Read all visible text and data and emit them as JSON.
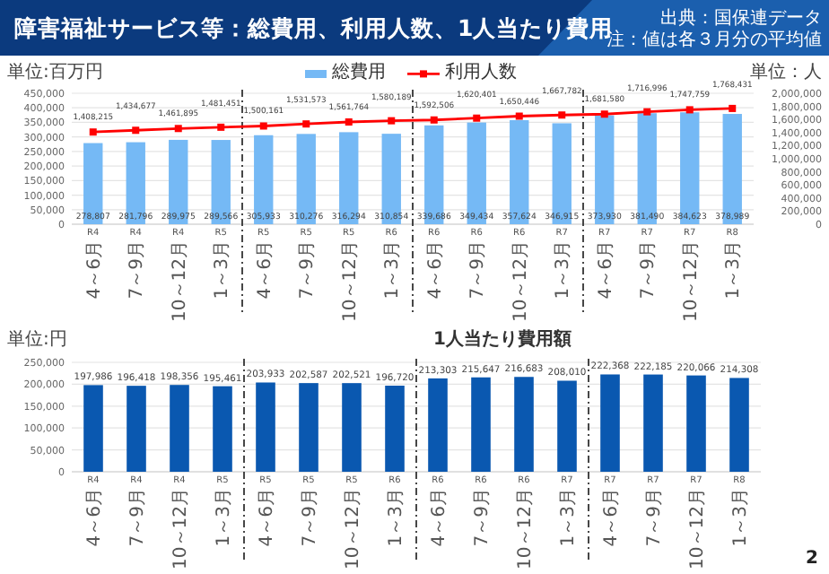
{
  "chart_data": [
    {
      "type": "bar",
      "title": "障害福祉サービス等：総費用、利用人数、1人当たり費用",
      "annotations": [
        "出典：国保連データ",
        "注：値は各３月分の平均値"
      ],
      "ylabel": "単位:百万円",
      "y2label": "単位：人",
      "categories": [
        "R4 4～6月",
        "R4 7～9月",
        "R4 10～12月",
        "R5 1～3月",
        "R5 4～6月",
        "R5 7～9月",
        "R5 10～12月",
        "R6 1～3月",
        "R6 4～6月",
        "R6 7～9月",
        "R6 10～12月",
        "R7 1～3月",
        "R7 4～6月",
        "R7 7～9月",
        "R7 10～12月",
        "R8 1～3月"
      ],
      "series": [
        {
          "name": "総費用",
          "color": "#75b9f5",
          "values": [
            278807,
            281796,
            289975,
            289566,
            305933,
            310276,
            316294,
            310854,
            339686,
            349434,
            357624,
            346915,
            373930,
            381490,
            384623,
            378989
          ],
          "value_labels": [
            "278,807",
            "281,796",
            "289,975",
            "289,566",
            "305,933",
            "310,276",
            "316,294",
            "310,854",
            "339,686",
            "349,434",
            "357,624",
            "346,915",
            "373,930",
            "381,490",
            "384,623",
            "378,989"
          ]
        },
        {
          "name": "利用人数",
          "type": "line",
          "axis": "y2",
          "color": "#ff0000",
          "values": [
            1408215,
            1434677,
            1461895,
            1481451,
            1500161,
            1531573,
            1561764,
            1580189,
            1592506,
            1620401,
            1650446,
            1667782,
            1681580,
            1716996,
            1747759,
            1768431
          ],
          "value_labels": [
            "1,408,215",
            "1,434,677",
            "1,461,895",
            "1,481,451",
            "1,500,161",
            "1,531,573",
            "1,561,764",
            "1,580,189",
            "1,592,506",
            "1,620,401",
            "1,650,446",
            "1,667,782",
            "1,681,580",
            "1,716,996",
            "1,747,759",
            "1,768,431"
          ]
        }
      ],
      "ylim": [
        0,
        450000
      ],
      "yticks": [
        {
          "value": 0,
          "label": "0"
        },
        {
          "value": 50000,
          "label": "50,000"
        },
        {
          "value": 100000,
          "label": "100,000"
        },
        {
          "value": 150000,
          "label": "150,000"
        },
        {
          "value": 200000,
          "label": "200,000"
        },
        {
          "value": 250000,
          "label": "250,000"
        },
        {
          "value": 300000,
          "label": "300,000"
        },
        {
          "value": 350000,
          "label": "350,000"
        },
        {
          "value": 400000,
          "label": "400,000"
        },
        {
          "value": 450000,
          "label": "450,000"
        }
      ],
      "y2lim": [
        0,
        2000000
      ],
      "y2ticks": [
        {
          "value": 0,
          "label": "0"
        },
        {
          "value": 200000,
          "label": "200,000"
        },
        {
          "value": 400000,
          "label": "400,000"
        },
        {
          "value": 600000,
          "label": "600,000"
        },
        {
          "value": 800000,
          "label": "800,000"
        },
        {
          "value": 1000000,
          "label": "1,000,000"
        },
        {
          "value": 1200000,
          "label": "1,200,000"
        },
        {
          "value": 1400000,
          "label": "1,400,000"
        },
        {
          "value": 1600000,
          "label": "1,600,000"
        },
        {
          "value": 1800000,
          "label": "1,800,000"
        },
        {
          "value": 2000000,
          "label": "2,000,000"
        }
      ],
      "grid": "y",
      "legend": "top",
      "marker": "square"
    },
    {
      "type": "bar",
      "title": "1人当たり費用額",
      "ylabel": "単位:円",
      "annotations": [
        "2"
      ],
      "categories": [
        "R4 4～6月",
        "R4 7～9月",
        "R4 10～12月",
        "R5 1～3月",
        "R5 4～6月",
        "R5 7～9月",
        "R5 10～12月",
        "R6 1～3月",
        "R6 4～6月",
        "R6 7～9月",
        "R6 10～12月",
        "R7 1～3月",
        "R7 4～6月",
        "R7 7～9月",
        "R7 10～12月",
        "R8 1～3月"
      ],
      "series": [
        {
          "color": "#0a58b0",
          "values": [
            197986,
            196418,
            198356,
            195461,
            203933,
            202587,
            202521,
            196720,
            213303,
            215647,
            216683,
            208010,
            222368,
            222185,
            220066,
            214308
          ],
          "value_labels": [
            "197,986",
            "196,418",
            "198,356",
            "195,461",
            "203,933",
            "202,587",
            "202,521",
            "196,720",
            "213,303",
            "215,647",
            "216,683",
            "208,010",
            "222,368",
            "222,185",
            "220,066",
            "214,308"
          ]
        }
      ],
      "ylim": [
        0,
        250000
      ],
      "yticks": [
        {
          "value": 0,
          "label": "0"
        },
        {
          "value": 50000,
          "label": "50,000"
        },
        {
          "value": 100000,
          "label": "100,000"
        },
        {
          "value": 150000,
          "label": "150,000"
        },
        {
          "value": 200000,
          "label": "200,000"
        },
        {
          "value": 250000,
          "label": "250,000"
        }
      ],
      "grid": "y"
    }
  ]
}
